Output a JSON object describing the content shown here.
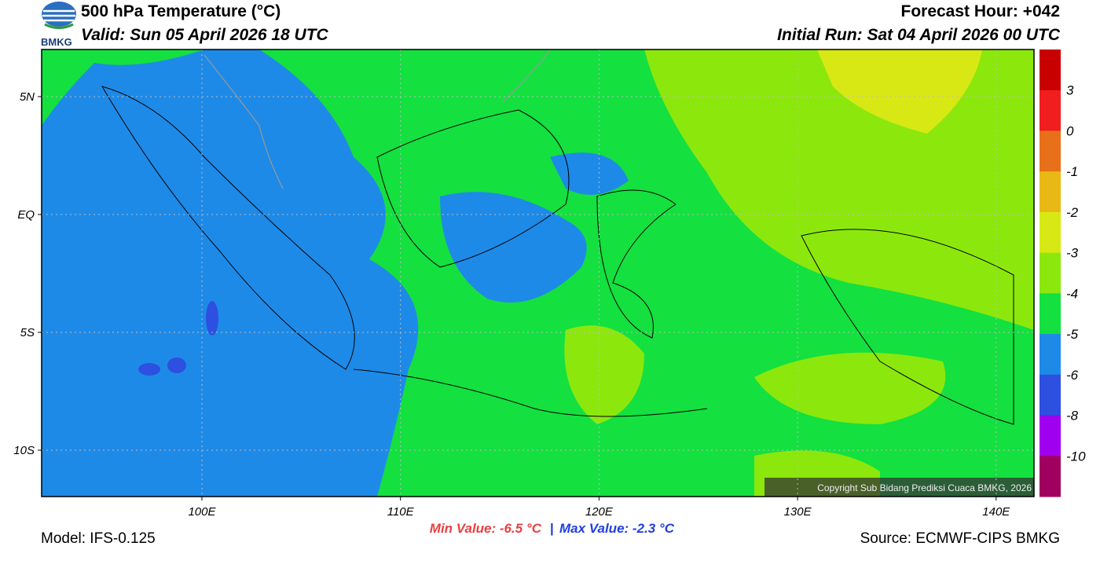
{
  "header": {
    "logo": "BMKG",
    "title": "500 hPa Temperature (°C)",
    "valid": "Valid: Sun 05 April 2026 18 UTC",
    "forecast_hour": "Forecast Hour: +042",
    "initial_run": "Initial Run: Sat 04 April 2026 00 UTC"
  },
  "map": {
    "lat_labels": [
      "5N",
      "EQ",
      "5S",
      "10S"
    ],
    "lon_labels": [
      "100E",
      "110E",
      "120E",
      "130E",
      "140E"
    ],
    "copyright": "Copyright Sub Bidang Prediksi Cuaca BMKG, 2026"
  },
  "colorbar": {
    "colors": [
      "#c80000",
      "#f01e1e",
      "#e8701a",
      "#e8b814",
      "#d8e814",
      "#8ce80c",
      "#14e040",
      "#1e8ae8",
      "#2d50e0",
      "#a000f0",
      "#a00060"
    ],
    "labels": [
      3,
      0,
      -1,
      -2,
      -3,
      -4,
      -5,
      -6,
      -8,
      -10
    ]
  },
  "footer": {
    "model": "Model: IFS-0.125",
    "min_value": "Min Value: -6.5 °C",
    "separator": "|",
    "max_value": "Max Value: -2.3 °C",
    "source": "Source: ECMWF-CIPS BMKG"
  }
}
